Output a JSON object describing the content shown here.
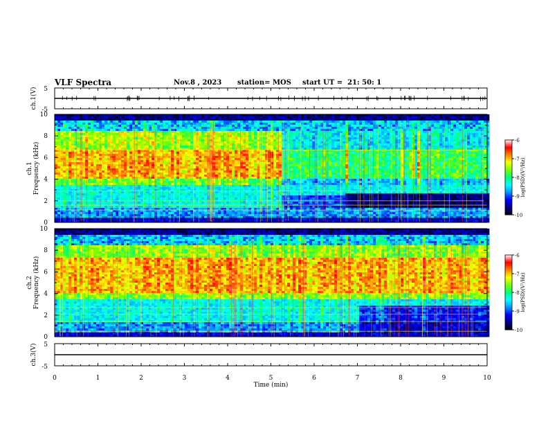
{
  "header": {
    "title": "VLF Spectra",
    "date": "Nov.8 , 2023",
    "station": "station= MOS",
    "start": "start UT =  21: 50: 1"
  },
  "chart_data": [
    {
      "type": "line",
      "panel": "ch1-waveform",
      "ylabel": "ch.1(V)",
      "ylim": [
        -5,
        5
      ],
      "yticks": [
        "5",
        "-5"
      ],
      "series": [
        {
          "values_description_none": "",
          "level": 0
        }
      ]
    },
    {
      "type": "heatmap",
      "panel": "ch1-spectrogram",
      "ylabel": "ch.1\nFrequency (kHz)",
      "ylabel_line1": "ch.1",
      "ylabel_line2": "Frequency (kHz)",
      "ylim": [
        0,
        10
      ],
      "yticks": [
        "0",
        "2",
        "4",
        "6",
        "8",
        "10"
      ],
      "xlim": [
        0,
        10
      ],
      "colorbar": {
        "label": "log(PSD)(V²/Hz)",
        "range": [
          -10,
          -6
        ],
        "ticks": [
          "-6",
          "-7",
          "-8",
          "-9",
          "-10"
        ]
      }
    },
    {
      "type": "heatmap",
      "panel": "ch2-spectrogram",
      "ylabel_line1": "ch.2",
      "ylabel_line2": "Frequency (kHz)",
      "ylim": [
        0,
        10
      ],
      "yticks": [
        "0",
        "2",
        "4",
        "6",
        "8",
        "10"
      ],
      "xlim": [
        0,
        10
      ],
      "colorbar": {
        "label": "log(PSD)(V²/Hz)",
        "range": [
          -10,
          -6
        ],
        "ticks": [
          "-6",
          "-7",
          "-8",
          "-9",
          "-10"
        ]
      }
    },
    {
      "type": "line",
      "panel": "ch3-waveform",
      "ylabel": "ch.3(V)",
      "ylim": [
        -5,
        5
      ],
      "yticks": [
        "5",
        "-5"
      ],
      "series": [
        {
          "level": 0
        }
      ]
    }
  ],
  "xaxis": {
    "label": "Time (min)",
    "ticks": [
      "0",
      "1",
      "2",
      "3",
      "4",
      "5",
      "6",
      "7",
      "8",
      "9",
      "10"
    ],
    "range": [
      0,
      10
    ]
  },
  "colors": {
    "axis": "#000000",
    "cmap": [
      "#000000",
      "#00008b",
      "#0000ff",
      "#00bfff",
      "#00ffff",
      "#00ff7f",
      "#7fff00",
      "#ffff00",
      "#ff8000",
      "#ff0000",
      "#ffffff"
    ]
  }
}
